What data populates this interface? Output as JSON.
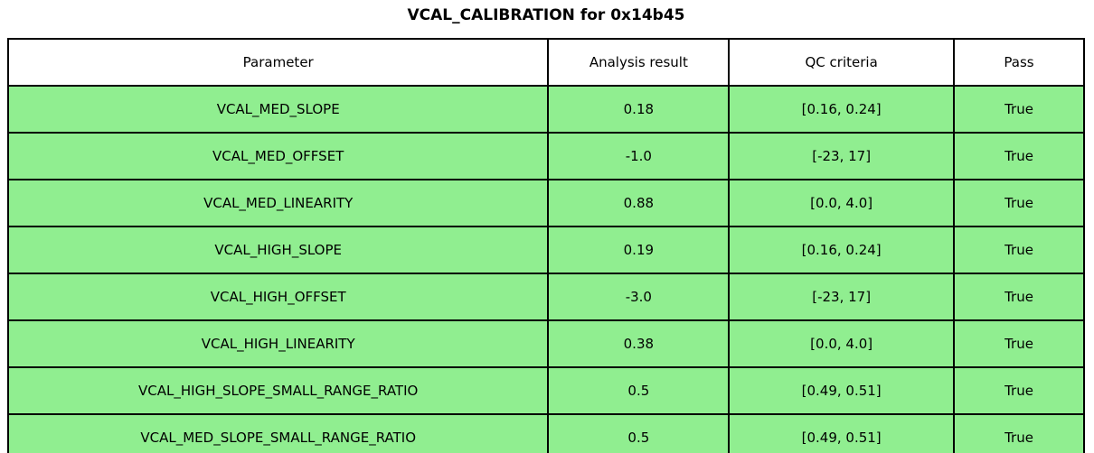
{
  "chart_data": {
    "type": "table",
    "title": "VCAL_CALIBRATION for 0x14b45",
    "columns": [
      "Parameter",
      "Analysis result",
      "QC criteria",
      "Pass"
    ],
    "rows": [
      [
        "VCAL_MED_SLOPE",
        "0.18",
        "[0.16, 0.24]",
        "True"
      ],
      [
        "VCAL_MED_OFFSET",
        "-1.0",
        "[-23, 17]",
        "True"
      ],
      [
        "VCAL_MED_LINEARITY",
        "0.88",
        "[0.0, 4.0]",
        "True"
      ],
      [
        "VCAL_HIGH_SLOPE",
        "0.19",
        "[0.16, 0.24]",
        "True"
      ],
      [
        "VCAL_HIGH_OFFSET",
        "-3.0",
        "[-23, 17]",
        "True"
      ],
      [
        "VCAL_HIGH_LINEARITY",
        "0.38",
        "[0.0, 4.0]",
        "True"
      ],
      [
        "VCAL_HIGH_SLOPE_SMALL_RANGE_RATIO",
        "0.5",
        "[0.49, 0.51]",
        "True"
      ],
      [
        "VCAL_MED_SLOPE_SMALL_RANGE_RATIO",
        "0.5",
        "[0.49, 0.51]",
        "True"
      ]
    ],
    "layout": {
      "legend": "none",
      "grid": "cell-borders",
      "header_position": "top"
    }
  },
  "colors": {
    "row_bg": "#90EE90",
    "header_bg": "#FFFFFF",
    "border": "#000000",
    "text": "#000000"
  }
}
